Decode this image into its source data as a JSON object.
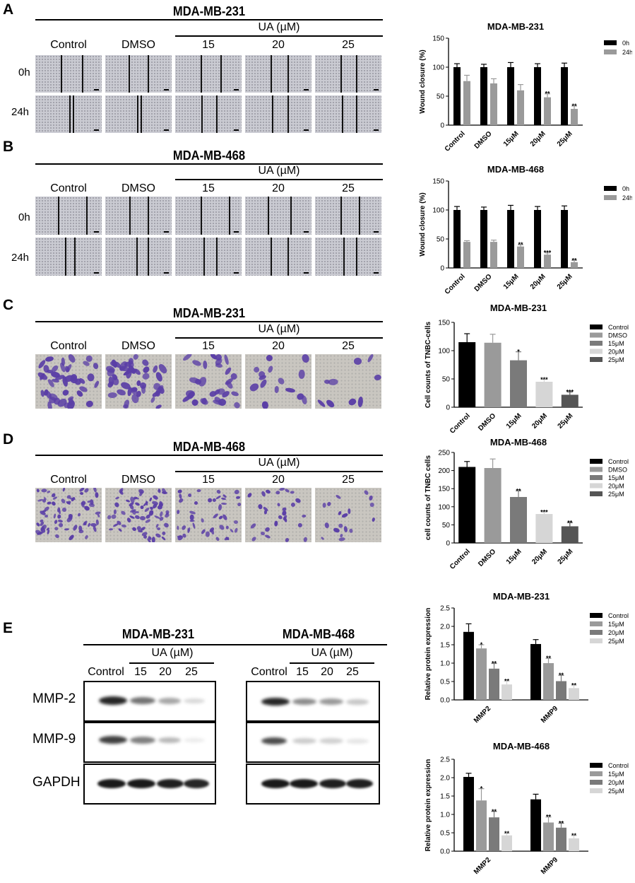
{
  "panels": {
    "A": {
      "letter": "A",
      "title": "MDA-MB-231",
      "ua_label": "UA (µM)",
      "cols": [
        "Control",
        "DMSO",
        "15",
        "20",
        "25"
      ],
      "rows": [
        "0h",
        "24h"
      ]
    },
    "B": {
      "letter": "B",
      "title": "MDA-MB-468",
      "ua_label": "UA (µM)",
      "cols": [
        "Control",
        "DMSO",
        "15",
        "20",
        "25"
      ],
      "rows": [
        "0h",
        "24h"
      ]
    },
    "C": {
      "letter": "C",
      "title": "MDA-MB-231",
      "ua_label": "UA (µM)",
      "cols": [
        "Control",
        "DMSO",
        "15",
        "20",
        "25"
      ]
    },
    "D": {
      "letter": "D",
      "title": "MDA-MB-468",
      "ua_label": "UA (µM)",
      "cols": [
        "Control",
        "DMSO",
        "15",
        "20",
        "25"
      ]
    },
    "E": {
      "letter": "E",
      "left_title": "MDA-MB-231",
      "right_title": "MDA-MB-468",
      "ua_label": "UA (µM)",
      "cols": [
        "Control",
        "15",
        "20",
        "25"
      ],
      "rows": [
        "MMP-2",
        "MMP-9",
        "GAPDH"
      ]
    }
  },
  "colors": {
    "black": "#000000",
    "grey1": "#9a9a9a",
    "grey2": "#7a7a7a",
    "grey3": "#d6d6d6",
    "grey4": "#555555",
    "crystal_violet": "#5a3ea6"
  },
  "chart_data": [
    {
      "id": "A",
      "type": "bar",
      "title": "MDA-MB-231",
      "ylabel": "Wound closure (%)",
      "xlabel": "",
      "ylim": [
        0,
        150
      ],
      "yticks": [
        0,
        50,
        100,
        150
      ],
      "categories": [
        "Control",
        "DMSO",
        "15μM",
        "20μM",
        "25μM"
      ],
      "series": [
        {
          "name": "0h",
          "color": "#000000",
          "values": [
            100,
            100,
            100,
            100,
            100
          ],
          "err": [
            6,
            5,
            8,
            6,
            7
          ],
          "sig": [
            "",
            "",
            "",
            "",
            ""
          ]
        },
        {
          "name": "24h",
          "color": "#9a9a9a",
          "values": [
            76,
            72,
            60,
            48,
            28
          ],
          "err": [
            10,
            8,
            10,
            6,
            5
          ],
          "sig": [
            "",
            "",
            "",
            "**",
            "**"
          ]
        }
      ],
      "legend": "top-right"
    },
    {
      "id": "B",
      "type": "bar",
      "title": "MDA-MB-468",
      "ylabel": "Wound closure (%)",
      "xlabel": "",
      "ylim": [
        0,
        150
      ],
      "yticks": [
        0,
        50,
        100,
        150
      ],
      "categories": [
        "Control",
        "DMSO",
        "15μM",
        "20μM",
        "25μM"
      ],
      "series": [
        {
          "name": "0h",
          "color": "#000000",
          "values": [
            100,
            100,
            100,
            100,
            100
          ],
          "err": [
            6,
            5,
            8,
            6,
            7
          ],
          "sig": [
            "",
            "",
            "",
            "",
            ""
          ]
        },
        {
          "name": "24h",
          "color": "#9a9a9a",
          "values": [
            45,
            45,
            37,
            23,
            10
          ],
          "err": [
            2,
            3,
            3,
            3,
            3
          ],
          "sig": [
            "",
            "",
            "**",
            "***",
            "**"
          ]
        }
      ],
      "legend": "top-right"
    },
    {
      "id": "C",
      "type": "bar",
      "title": "MDA-MB-231",
      "ylabel": "Cell counts of TNBC-cells",
      "xlabel": "",
      "ylim": [
        0,
        150
      ],
      "yticks": [
        0,
        50,
        100,
        150
      ],
      "categories": [
        "Control",
        "DMSO",
        "15μM",
        "20μM",
        "25μM"
      ],
      "series": [
        {
          "name": "",
          "values": [
            115,
            114,
            83,
            45,
            22
          ],
          "err": [
            15,
            15,
            15,
            4,
            5
          ],
          "sig": [
            "",
            "",
            "*",
            "***",
            "***"
          ],
          "colors": [
            "#000000",
            "#9a9a9a",
            "#7a7a7a",
            "#d6d6d6",
            "#555555"
          ]
        }
      ],
      "legend_entries": [
        "Control",
        "DMSO",
        "15μM",
        "20μM",
        "25μM"
      ],
      "legend": "top-right"
    },
    {
      "id": "D",
      "type": "bar",
      "title": "MDA-MB-468",
      "ylabel": "cell counts of TNBC cells",
      "xlabel": "",
      "ylim": [
        0,
        250
      ],
      "yticks": [
        0,
        50,
        100,
        150,
        200,
        250
      ],
      "categories": [
        "Control",
        "DMSO",
        "15μM",
        "20μM",
        "25μM"
      ],
      "series": [
        {
          "name": "",
          "values": [
            210,
            207,
            127,
            80,
            46
          ],
          "err": [
            15,
            25,
            17,
            5,
            10
          ],
          "sig": [
            "",
            "",
            "**",
            "***",
            "**"
          ],
          "colors": [
            "#000000",
            "#9a9a9a",
            "#7a7a7a",
            "#d6d6d6",
            "#555555"
          ]
        }
      ],
      "legend_entries": [
        "Control",
        "DMSO",
        "15μM",
        "20μM",
        "25μM"
      ],
      "legend": "top-right"
    },
    {
      "id": "E1",
      "type": "bar",
      "title": "MDA-MB-231",
      "ylabel": "Relative protein expression",
      "xlabel": "",
      "ylim": [
        0,
        2.5
      ],
      "yticks": [
        0.0,
        0.5,
        1.0,
        1.5,
        2.0,
        2.5
      ],
      "categories": [
        "MMP2",
        "MMP9"
      ],
      "series": [
        {
          "name": "Control",
          "color": "#000000",
          "values": [
            1.85,
            1.52
          ],
          "err": [
            0.22,
            0.12
          ],
          "sig": [
            "",
            ""
          ]
        },
        {
          "name": "15μM",
          "color": "#9a9a9a",
          "values": [
            1.4,
            1.0
          ],
          "err": [
            0.1,
            0.13
          ],
          "sig": [
            "*",
            "**"
          ]
        },
        {
          "name": "20μM",
          "color": "#7a7a7a",
          "values": [
            0.85,
            0.51
          ],
          "err": [
            0.14,
            0.16
          ],
          "sig": [
            "**",
            "**"
          ]
        },
        {
          "name": "25μM",
          "color": "#d6d6d6",
          "values": [
            0.42,
            0.32
          ],
          "err": [
            0.09,
            0.07
          ],
          "sig": [
            "**",
            "**"
          ]
        }
      ],
      "legend": "top-right"
    },
    {
      "id": "E2",
      "type": "bar",
      "title": "MDA-MB-468",
      "ylabel": "Relative protein expression",
      "xlabel": "",
      "ylim": [
        0,
        2.5
      ],
      "yticks": [
        0.0,
        0.5,
        1.0,
        1.5,
        2.0,
        2.5
      ],
      "categories": [
        "MMP2",
        "MMP9"
      ],
      "series": [
        {
          "name": "Control",
          "color": "#000000",
          "values": [
            2.02,
            1.41
          ],
          "err": [
            0.1,
            0.14
          ],
          "sig": [
            "",
            ""
          ]
        },
        {
          "name": "15μM",
          "color": "#9a9a9a",
          "values": [
            1.38,
            0.78
          ],
          "err": [
            0.32,
            0.15
          ],
          "sig": [
            "*",
            "**"
          ]
        },
        {
          "name": "20μM",
          "color": "#7a7a7a",
          "values": [
            0.92,
            0.64
          ],
          "err": [
            0.16,
            0.12
          ],
          "sig": [
            "**",
            "**"
          ]
        },
        {
          "name": "25μM",
          "color": "#d6d6d6",
          "values": [
            0.43,
            0.35
          ],
          "err": [
            0.05,
            0.07
          ],
          "sig": [
            "**",
            "**"
          ]
        }
      ],
      "legend": "top-right"
    }
  ]
}
